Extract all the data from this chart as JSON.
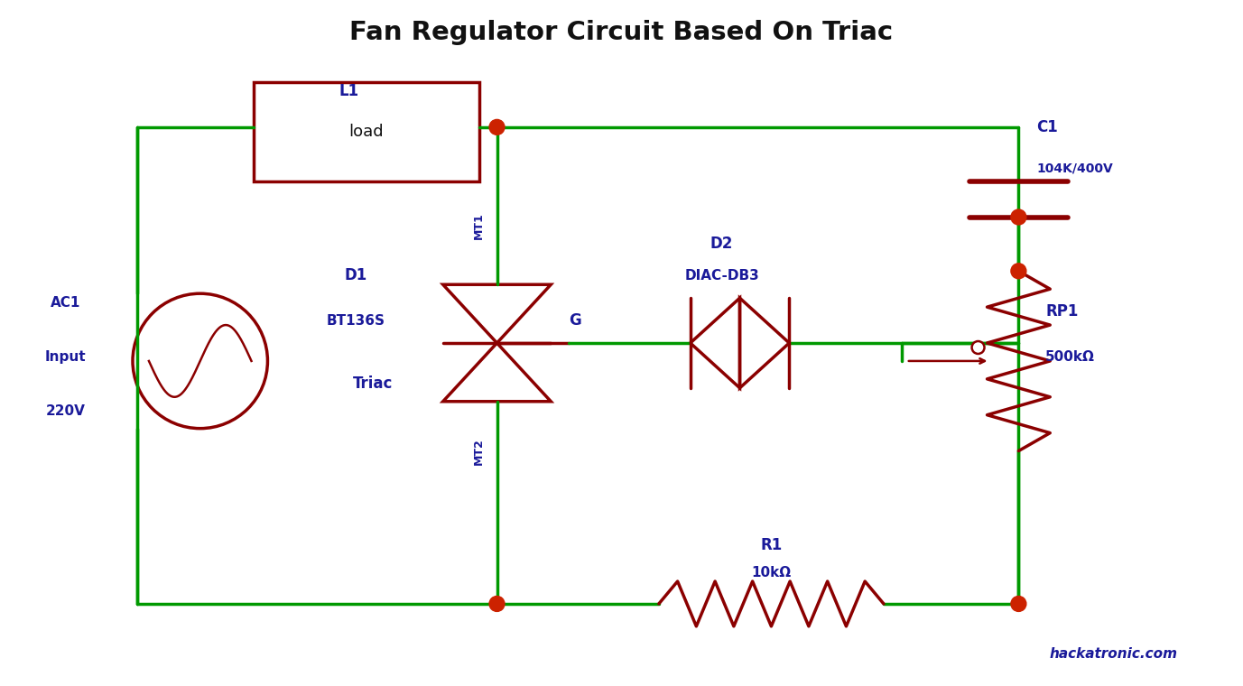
{
  "title": "Fan Regulator Circuit Based On Triac",
  "title_fontsize": 21,
  "title_color": "#111111",
  "bg_color": "#ffffff",
  "wire_green": "#009900",
  "comp_dark": "#8B0000",
  "label_blue": "#1a1a9a",
  "dot_red": "#cc2200",
  "watermark": "hackatronic.com",
  "watermark_color": "#1a1a9a",
  "ac_label": [
    "AC1",
    "Input",
    "220V"
  ],
  "load_label": "load",
  "l1_label": "L1",
  "triac_labels": [
    "D1",
    "BT136S",
    "Triac",
    "MT1",
    "MT2",
    "G"
  ],
  "diac_labels": [
    "D2",
    "DIAC-DB3"
  ],
  "cap_labels": [
    "C1",
    "104K/400V"
  ],
  "pot_labels": [
    "RP1",
    "500kΩ"
  ],
  "r1_labels": [
    "R1",
    "10kΩ"
  ]
}
